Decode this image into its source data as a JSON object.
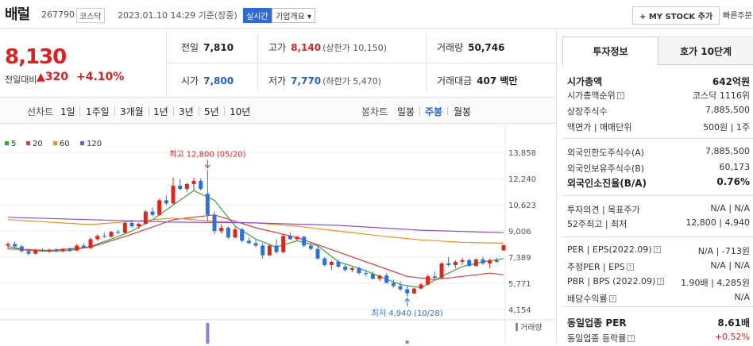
{
  "header": {
    "stock_name": "배럴",
    "code": "267790",
    "market": "코스닥",
    "date": "2023.01.10 14:29 기준(장중)",
    "realtime": "실시간",
    "overview": "기업개요 ▾",
    "mystock": "+ MY STOCK 추가",
    "quick": "빠른주문"
  },
  "price": {
    "current": "8,130",
    "change_label": "전일대비",
    "change": "▲320",
    "percent": "+4.10%"
  },
  "summary": {
    "prev_label": "전일",
    "prev": "7,810",
    "high_label": "고가",
    "high": "8,140",
    "upper_limit": "(상한가 10,150)",
    "volume_label": "거래량",
    "volume": "50,746",
    "open_label": "시가",
    "open": "7,800",
    "low_label": "저가",
    "low": "7,770",
    "lower_limit": "(하한가 5,470)",
    "amount_label": "거래대금",
    "amount": "407 백만"
  },
  "periods": {
    "line_label": "선차트",
    "line_items": [
      "1일",
      "1주일",
      "3개월",
      "1년",
      "3년",
      "5년",
      "10년"
    ],
    "candle_label": "봉차트",
    "candle_items": [
      "일봉",
      "주봉",
      "월봉"
    ],
    "active": "주봉"
  },
  "chart_data": {
    "type": "candlestick",
    "legend": [
      {
        "name": "5",
        "color": "#3aa63a"
      },
      {
        "name": "20",
        "color": "#e33a3a"
      },
      {
        "name": "60",
        "color": "#f0901e"
      },
      {
        "name": "120",
        "color": "#8a4fd0"
      }
    ],
    "y_ticks": [
      "13,858",
      "12,240",
      "10,623",
      "9,006",
      "7,389",
      "5,771",
      "4,154"
    ],
    "ylim": [
      4154,
      13858
    ],
    "max_annotation": "최고 12,800 (05/20)",
    "min_annotation": "최저 4,940 (10/28)",
    "volume_label": "거래량",
    "candles": [
      [
        8100,
        8300,
        7900,
        8200
      ],
      [
        8200,
        8350,
        8000,
        8050
      ],
      [
        8050,
        8150,
        7700,
        7750
      ],
      [
        7750,
        7900,
        7500,
        7600
      ],
      [
        7600,
        7900,
        7550,
        7800
      ],
      [
        7800,
        7950,
        7700,
        7750
      ],
      [
        7750,
        7900,
        7650,
        7850
      ],
      [
        7850,
        7950,
        7700,
        7750
      ],
      [
        7750,
        7950,
        7700,
        7900
      ],
      [
        7900,
        8000,
        7700,
        7800
      ],
      [
        7800,
        8200,
        7750,
        8100
      ],
      [
        8100,
        8250,
        7900,
        7950
      ],
      [
        7950,
        8600,
        7900,
        8500
      ],
      [
        8500,
        8800,
        8400,
        8700
      ],
      [
        8700,
        8900,
        8550,
        8650
      ],
      [
        8650,
        9000,
        8600,
        8950
      ],
      [
        8950,
        9050,
        8800,
        8900
      ],
      [
        8900,
        9600,
        8850,
        9500
      ],
      [
        9500,
        9700,
        9200,
        9300
      ],
      [
        9300,
        9500,
        9150,
        9450
      ],
      [
        9450,
        10300,
        9400,
        10200
      ],
      [
        10200,
        10450,
        9900,
        10000
      ],
      [
        10000,
        11000,
        9950,
        10900
      ],
      [
        10900,
        11200,
        10600,
        10700
      ],
      [
        10700,
        12300,
        10650,
        11800
      ],
      [
        11800,
        12200,
        11500,
        11600
      ],
      [
        11600,
        12000,
        11400,
        11900
      ],
      [
        11900,
        12300,
        11500,
        12100
      ],
      [
        12100,
        12250,
        11500,
        11600
      ],
      [
        11300,
        12800,
        9600,
        10000
      ],
      [
        10000,
        10200,
        8800,
        9000
      ],
      [
        9000,
        9400,
        8850,
        9200
      ],
      [
        9200,
        9300,
        8500,
        8600
      ],
      [
        8600,
        9250,
        8550,
        9100
      ],
      [
        9100,
        9200,
        8300,
        8400
      ],
      [
        8400,
        8600,
        8200,
        8250
      ],
      [
        8250,
        8450,
        8000,
        8100
      ],
      [
        8100,
        8250,
        7300,
        7500
      ],
      [
        7500,
        8200,
        7450,
        8100
      ],
      [
        8100,
        8500,
        7600,
        7700
      ],
      [
        7700,
        8800,
        7650,
        8700
      ],
      [
        8700,
        8900,
        8450,
        8500
      ],
      [
        8500,
        8700,
        8400,
        8650
      ],
      [
        8650,
        8700,
        8000,
        8100
      ],
      [
        8100,
        8250,
        7800,
        7900
      ],
      [
        7900,
        8100,
        7250,
        7300
      ],
      [
        7300,
        7400,
        6800,
        6900
      ],
      [
        6900,
        7200,
        6600,
        7100
      ],
      [
        7100,
        7250,
        6700,
        6800
      ],
      [
        6800,
        6950,
        6500,
        6600
      ],
      [
        6600,
        6800,
        6450,
        6700
      ],
      [
        6700,
        6800,
        6300,
        6400
      ],
      [
        6400,
        6600,
        6200,
        6350
      ],
      [
        6350,
        6500,
        6000,
        6050
      ],
      [
        6050,
        6300,
        5900,
        6250
      ],
      [
        6250,
        6400,
        5750,
        5800
      ],
      [
        5800,
        6000,
        5500,
        5600
      ],
      [
        5600,
        5900,
        5300,
        5400
      ],
      [
        5400,
        5600,
        4940,
        5150
      ],
      [
        5150,
        5500,
        5100,
        5450
      ],
      [
        5450,
        5800,
        5400,
        5700
      ],
      [
        5700,
        6300,
        5650,
        6200
      ],
      [
        6200,
        6500,
        6050,
        6100
      ],
      [
        6100,
        7100,
        6050,
        7000
      ],
      [
        7000,
        7400,
        6800,
        6900
      ],
      [
        6900,
        7200,
        6700,
        7100
      ],
      [
        7100,
        7350,
        6900,
        7200
      ],
      [
        7200,
        7300,
        6800,
        6850
      ],
      [
        6850,
        7300,
        6800,
        7250
      ],
      [
        7250,
        7400,
        6900,
        7000
      ],
      [
        7000,
        7300,
        6700,
        7200
      ],
      [
        7200,
        7350,
        7050,
        7100
      ],
      [
        7810,
        8140,
        7770,
        8130
      ]
    ],
    "ma_series": [
      {
        "name": "5",
        "points": [
          [
            0,
            8050
          ],
          [
            3,
            7800
          ],
          [
            6,
            7750
          ],
          [
            9,
            7800
          ],
          [
            12,
            8050
          ],
          [
            15,
            8500
          ],
          [
            18,
            9000
          ],
          [
            21,
            9700
          ],
          [
            24,
            10600
          ],
          [
            27,
            11500
          ],
          [
            30,
            10900
          ],
          [
            33,
            9300
          ],
          [
            36,
            8500
          ],
          [
            39,
            8000
          ],
          [
            42,
            8400
          ],
          [
            45,
            8100
          ],
          [
            48,
            7100
          ],
          [
            51,
            6700
          ],
          [
            54,
            6200
          ],
          [
            57,
            5700
          ],
          [
            60,
            5500
          ],
          [
            63,
            6200
          ],
          [
            66,
            6800
          ],
          [
            69,
            7100
          ],
          [
            72,
            7300
          ]
        ]
      },
      {
        "name": "20",
        "points": [
          [
            0,
            7900
          ],
          [
            6,
            7800
          ],
          [
            12,
            8000
          ],
          [
            18,
            8800
          ],
          [
            24,
            9700
          ],
          [
            30,
            10000
          ],
          [
            36,
            9200
          ],
          [
            42,
            8600
          ],
          [
            48,
            7700
          ],
          [
            54,
            6800
          ],
          [
            58,
            6200
          ],
          [
            62,
            6000
          ],
          [
            66,
            6200
          ],
          [
            70,
            6400
          ],
          [
            72,
            6300
          ]
        ]
      },
      {
        "name": "60",
        "points": [
          [
            0,
            9700
          ],
          [
            12,
            9400
          ],
          [
            24,
            9800
          ],
          [
            30,
            9600
          ],
          [
            36,
            9500
          ],
          [
            42,
            9300
          ],
          [
            48,
            9000
          ],
          [
            54,
            8700
          ],
          [
            60,
            8450
          ],
          [
            66,
            8300
          ],
          [
            72,
            8250
          ]
        ]
      },
      {
        "name": "120",
        "points": [
          [
            0,
            9850
          ],
          [
            12,
            9700
          ],
          [
            24,
            9550
          ],
          [
            36,
            9500
          ],
          [
            48,
            9350
          ],
          [
            60,
            9050
          ],
          [
            72,
            8900
          ]
        ]
      }
    ],
    "volume_bars": [
      {
        "index": 29,
        "level": "high"
      },
      {
        "index": 58,
        "level": "low"
      }
    ]
  },
  "invest": {
    "tab_info": "투자정보",
    "tab_order": "호가 10단계",
    "rows": [
      {
        "label": "시가총액",
        "value": "642억원",
        "strong": true
      },
      {
        "label": "시가총액순위",
        "value": "코스닥 1116위"
      },
      {
        "label": "상장주식수",
        "value": "7,885,500"
      },
      {
        "label": "액면가 | 매매단위",
        "value": "500원 | 1주"
      },
      {
        "label": "외국인한도주식수(A)",
        "value": "7,885,500"
      },
      {
        "label": "외국인보유주식수(B)",
        "value": "60,173"
      },
      {
        "label": "외국인소진율(B/A)",
        "value": "0.76%",
        "strong": true
      },
      {
        "label": "투자의견 | 목표주가",
        "value": "N/A | N/A"
      },
      {
        "label": "52주최고 | 최저",
        "value": "12,800 | 4,940"
      },
      {
        "label": "PER | EPS(2022.09)",
        "value": "N/A | -713원"
      },
      {
        "label": "추정PER | EPS",
        "value": "N/A | N/A"
      },
      {
        "label": "PBR | BPS (2022.09)",
        "value": "1.90배 | 4,285원"
      },
      {
        "label": "배당수익률",
        "value": "N/A"
      },
      {
        "label": "동일업종 PER",
        "value": "8.61배",
        "strong": true
      },
      {
        "label": "동일업종 등락률",
        "value": "+0.52%",
        "red": true
      }
    ]
  }
}
